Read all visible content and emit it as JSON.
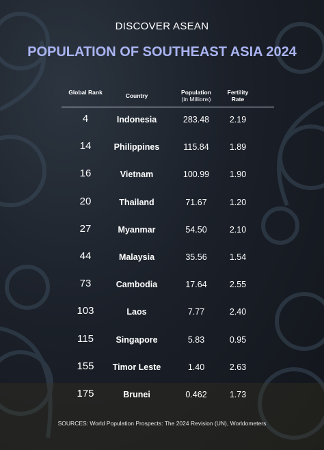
{
  "header": {
    "kicker": "DISCOVER ASEAN",
    "title": "POPULATION OF SOUTHEAST ASIA 2024"
  },
  "table": {
    "columns": [
      {
        "label": "Global Rank"
      },
      {
        "label": "Country"
      },
      {
        "label": "Population",
        "unit": "(in Millions)"
      },
      {
        "label": "Fertility Rate"
      }
    ],
    "rows": [
      [
        "4",
        "Indonesia",
        "283.48",
        "2.19"
      ],
      [
        "14",
        "Philippines",
        "115.84",
        "1.89"
      ],
      [
        "16",
        "Vietnam",
        "100.99",
        "1.90"
      ],
      [
        "20",
        "Thailand",
        "71.67",
        "1.20"
      ],
      [
        "27",
        "Myanmar",
        "54.50",
        "2.10"
      ],
      [
        "44",
        "Malaysia",
        "35.56",
        "1.54"
      ],
      [
        "73",
        "Cambodia",
        "17.64",
        "2.55"
      ],
      [
        "103",
        "Laos",
        "7.77",
        "2.40"
      ],
      [
        "115",
        "Singapore",
        "5.83",
        "0.95"
      ],
      [
        "155",
        "Timor Leste",
        "1.40",
        "2.63"
      ],
      [
        "175",
        "Brunei",
        "0.462",
        "1.73"
      ]
    ]
  },
  "footer": {
    "source": "SOURCES: World Population Prospects: The 2024 Revision (UN), Worldometers"
  }
}
